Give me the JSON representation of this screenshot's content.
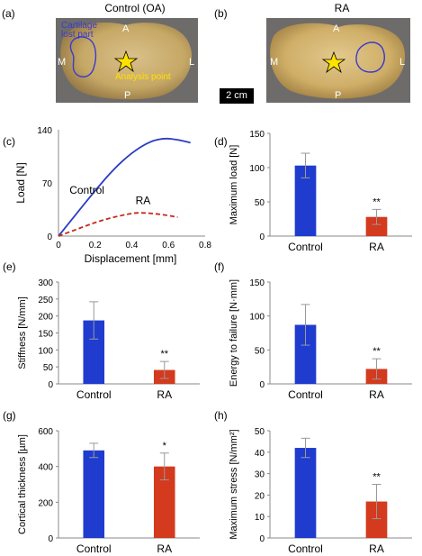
{
  "photos": [
    {
      "letter": "(a)",
      "title": "Control (OA)",
      "labels": {
        "A": "A",
        "M": "M",
        "L": "L",
        "P": "P"
      },
      "annotation_lost": "Cartilage\nlost part",
      "annotation_point": "Analysis point"
    },
    {
      "letter": "(b)",
      "title": "RA",
      "labels": {
        "A": "A",
        "M": "M",
        "L": "L",
        "P": "P"
      }
    }
  ],
  "scale_bar": "2 cm",
  "chart_data": [
    {
      "id": "c",
      "letter": "(c)",
      "type": "line",
      "xlabel": "Displacement [mm]",
      "ylabel": "Load [N]",
      "xlim": [
        0,
        0.8
      ],
      "ylim": [
        0,
        140
      ],
      "xticks": [
        0,
        0.2,
        0.4,
        0.6,
        0.8
      ],
      "yticks": [
        0,
        70,
        140
      ],
      "series": [
        {
          "name": "Control",
          "color": "#2b3cc4",
          "dash": false,
          "x": [
            0,
            0.1,
            0.2,
            0.3,
            0.4,
            0.5,
            0.58,
            0.65,
            0.72
          ],
          "y": [
            0,
            30,
            60,
            88,
            110,
            125,
            129,
            127,
            123
          ]
        },
        {
          "name": "RA",
          "color": "#c8281e",
          "dash": true,
          "x": [
            0,
            0.1,
            0.2,
            0.3,
            0.4,
            0.45,
            0.55,
            0.65
          ],
          "y": [
            0,
            9,
            18,
            25,
            30,
            31,
            29,
            25
          ]
        }
      ]
    },
    {
      "id": "d",
      "letter": "(d)",
      "type": "bar",
      "ylabel": "Maximum load [N]",
      "categories": [
        "Control",
        "RA"
      ],
      "values": [
        103,
        28
      ],
      "errors": [
        18,
        11
      ],
      "colors": [
        "#1f3ccf",
        "#d33a1e"
      ],
      "ylim": [
        0,
        150
      ],
      "yticks": [
        0,
        50,
        100,
        150
      ],
      "significance": [
        "",
        "**"
      ]
    },
    {
      "id": "e",
      "letter": "(e)",
      "type": "bar",
      "ylabel": "Stiffness [N/mm]",
      "categories": [
        "Control",
        "RA"
      ],
      "values": [
        187,
        41
      ],
      "errors": [
        55,
        25
      ],
      "colors": [
        "#1f3ccf",
        "#d33a1e"
      ],
      "ylim": [
        0,
        300
      ],
      "yticks": [
        0,
        50,
        100,
        150,
        200,
        250,
        300
      ],
      "significance": [
        "",
        "**"
      ]
    },
    {
      "id": "f",
      "letter": "(f)",
      "type": "bar",
      "ylabel": "Energy to failure [N·mm]",
      "categories": [
        "Control",
        "RA"
      ],
      "values": [
        87,
        22
      ],
      "errors": [
        30,
        15
      ],
      "colors": [
        "#1f3ccf",
        "#d33a1e"
      ],
      "ylim": [
        0,
        150
      ],
      "yticks": [
        0,
        50,
        100,
        150
      ],
      "significance": [
        "",
        "**"
      ]
    },
    {
      "id": "g",
      "letter": "(g)",
      "type": "bar",
      "ylabel": "Cortical thickness [µm]",
      "categories": [
        "Control",
        "RA"
      ],
      "values": [
        490,
        400
      ],
      "errors": [
        40,
        75
      ],
      "colors": [
        "#1f3ccf",
        "#d33a1e"
      ],
      "ylim": [
        0,
        600
      ],
      "yticks": [
        0,
        200,
        400,
        600
      ],
      "significance": [
        "",
        "*"
      ]
    },
    {
      "id": "h",
      "letter": "(h)",
      "type": "bar",
      "ylabel": "Maximum stress [N/mm²]",
      "categories": [
        "Control",
        "RA"
      ],
      "values": [
        42,
        17
      ],
      "errors": [
        4.5,
        8
      ],
      "colors": [
        "#1f3ccf",
        "#d33a1e"
      ],
      "ylim": [
        0,
        50
      ],
      "yticks": [
        0,
        10,
        20,
        30,
        40,
        50
      ],
      "significance": [
        "",
        "**"
      ]
    }
  ]
}
